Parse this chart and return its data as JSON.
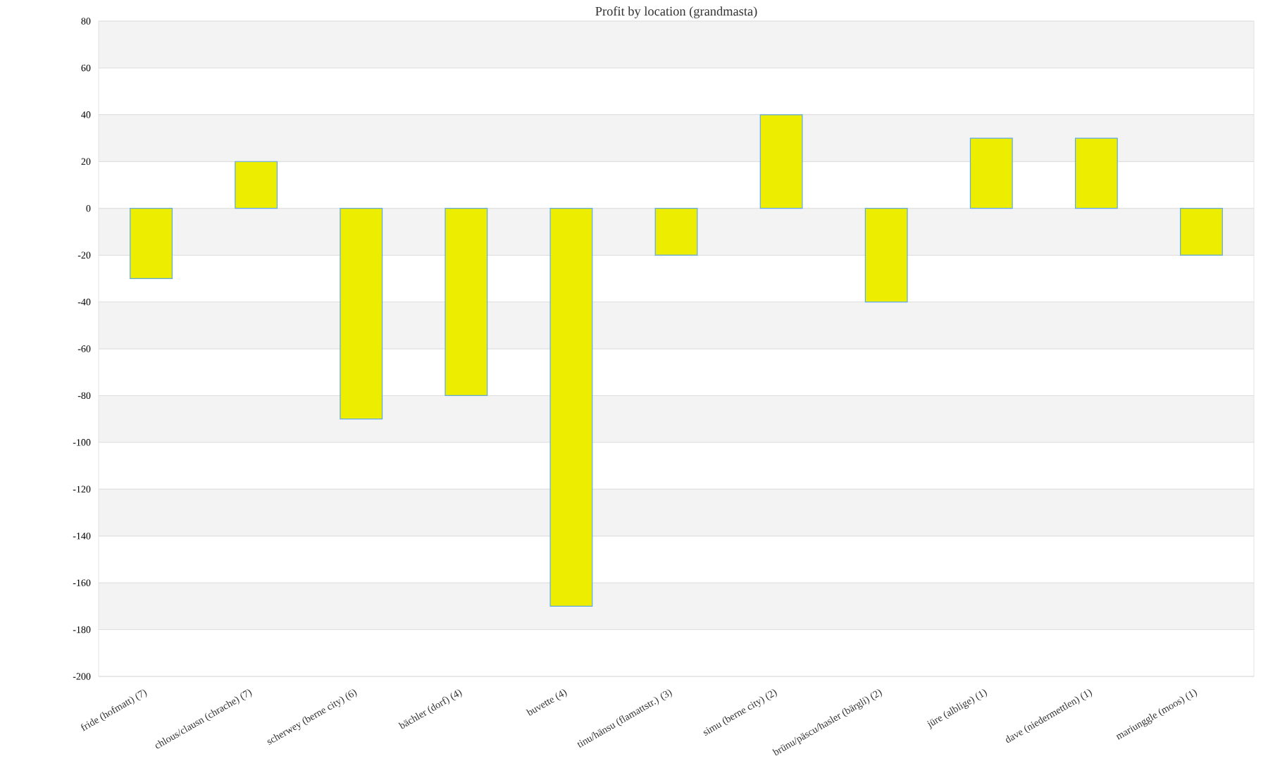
{
  "chart_data": {
    "type": "bar",
    "title": "Profit by location  (grandmasta)",
    "categories": [
      "fride (hofmatt) (7)",
      "chlous/clausn (chrache) (7)",
      "scherwey (berne city) (6)",
      "bächler (dorf) (4)",
      "buvette (4)",
      "tinu/hänsu (flamattstr.) (3)",
      "simu (berne city) (2)",
      "brünu/päscu/hasler (bärgli) (2)",
      "jüre (alblige) (1)",
      "dave (niedermettlen) (1)",
      "mariunggle (moos) (1)"
    ],
    "values": [
      -30,
      20,
      -90,
      -80,
      -170,
      -20,
      40,
      -40,
      30,
      30,
      -20
    ],
    "color": "#eded00",
    "ylim": [
      -200,
      80
    ],
    "yticks": [
      -200,
      -180,
      -160,
      -140,
      -120,
      -100,
      -80,
      -60,
      -40,
      -20,
      0,
      20,
      40,
      60,
      80
    ],
    "grid": "y"
  }
}
